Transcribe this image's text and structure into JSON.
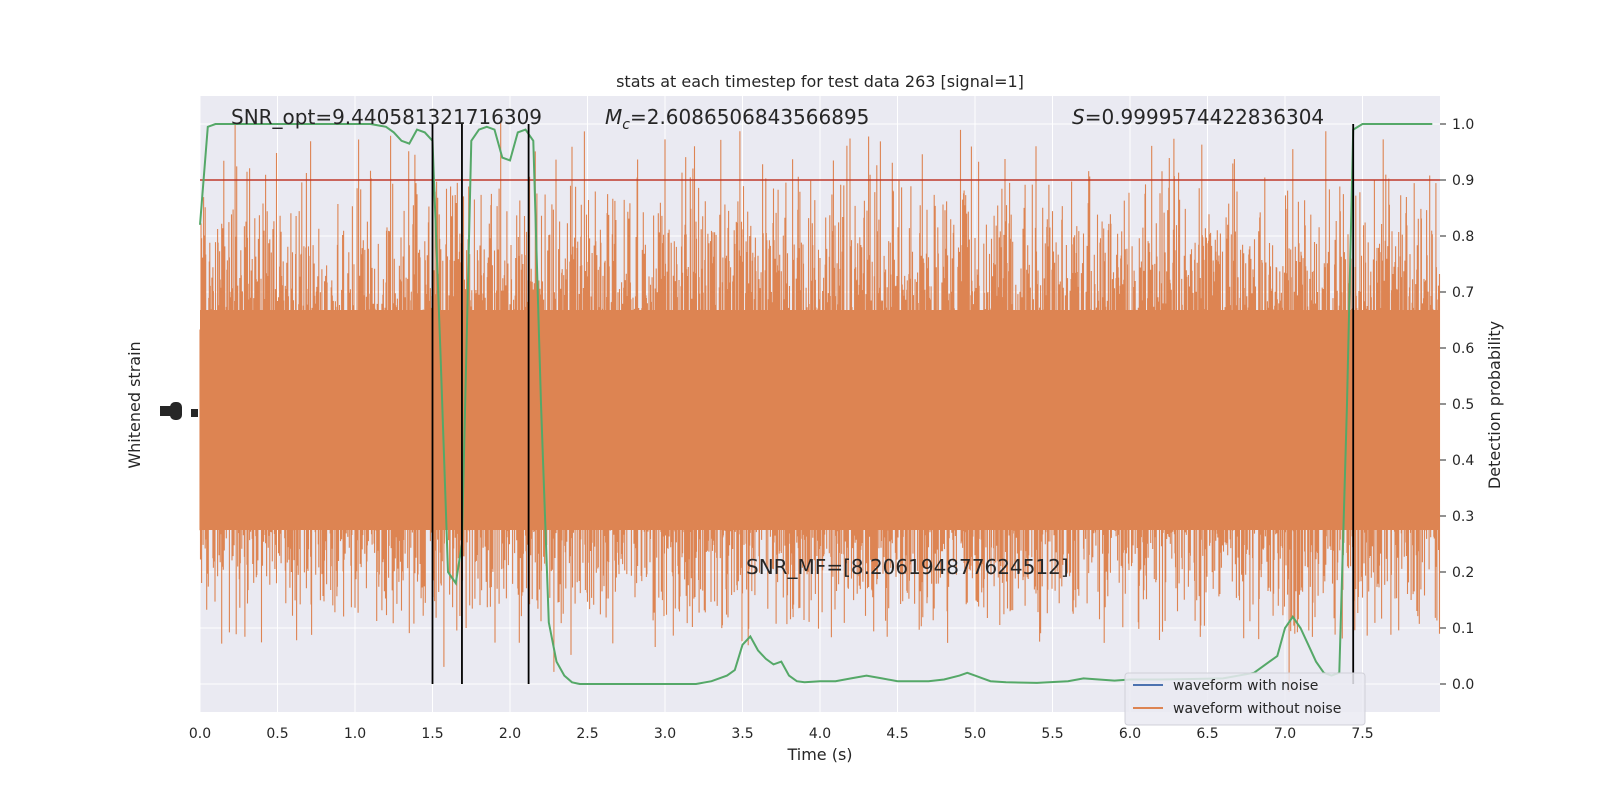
{
  "chart_data": {
    "type": "line",
    "title": "stats at each timestep for test data 263 [signal=1]",
    "xlabel": "Time (s)",
    "ylabel_left": "Whitened strain",
    "ylabel_right": "Detection probability",
    "xlim": [
      0.0,
      8.0
    ],
    "ylim_right": [
      -0.05,
      1.05
    ],
    "x_ticks": [
      "0.0",
      "0.5",
      "1.0",
      "1.5",
      "2.0",
      "2.5",
      "3.0",
      "3.5",
      "4.0",
      "4.5",
      "5.0",
      "5.5",
      "6.0",
      "6.5",
      "7.0",
      "7.5"
    ],
    "y_ticks_right": [
      "0.0",
      "0.1",
      "0.2",
      "0.3",
      "0.4",
      "0.5",
      "0.6",
      "0.7",
      "0.8",
      "0.9",
      "1.0"
    ],
    "grid": true,
    "threshold": 0.9,
    "threshold_color": "#c0392b",
    "vlines": [
      1.5,
      1.69,
      2.12,
      7.44
    ],
    "annotations": {
      "snr_opt": "SNR_opt=9.440581321716309",
      "mc_symbol": "M",
      "mc_sub": "c",
      "mc_value": "=2.6086506843566895",
      "s_symbol": "S",
      "s_value": "=0.9999574422836304",
      "snr_mf": "SNR_MF=[8.206194877624512]"
    },
    "legend": {
      "placement": "bottom-right",
      "entries": [
        {
          "label": "waveform with noise",
          "color": "#4c72b0"
        },
        {
          "label": "waveform without noise",
          "color": "#dd8452"
        }
      ]
    },
    "noise_color": "#dd8452",
    "prob_color": "#55a868",
    "probability_series": {
      "x": [
        0.0,
        0.05,
        0.1,
        0.2,
        0.3,
        0.4,
        0.5,
        0.6,
        0.7,
        0.8,
        0.9,
        1.0,
        1.1,
        1.2,
        1.25,
        1.3,
        1.35,
        1.4,
        1.45,
        1.5,
        1.55,
        1.6,
        1.65,
        1.69,
        1.75,
        1.8,
        1.85,
        1.9,
        1.95,
        2.0,
        2.05,
        2.1,
        2.15,
        2.2,
        2.25,
        2.3,
        2.35,
        2.4,
        2.45,
        2.5,
        2.6,
        2.8,
        3.0,
        3.2,
        3.3,
        3.4,
        3.45,
        3.5,
        3.55,
        3.6,
        3.65,
        3.7,
        3.75,
        3.8,
        3.85,
        3.9,
        3.95,
        4.0,
        4.1,
        4.2,
        4.3,
        4.4,
        4.5,
        4.6,
        4.7,
        4.8,
        4.9,
        4.95,
        5.0,
        5.05,
        5.1,
        5.2,
        5.4,
        5.6,
        5.7,
        5.8,
        5.9,
        6.0,
        6.2,
        6.4,
        6.6,
        6.8,
        6.95,
        7.0,
        7.05,
        7.1,
        7.15,
        7.2,
        7.25,
        7.3,
        7.35,
        7.4,
        7.44,
        7.5,
        7.55,
        7.6,
        7.7,
        7.8,
        7.95
      ],
      "y": [
        0.82,
        0.995,
        1.0,
        1.0,
        1.0,
        1.0,
        1.0,
        1.0,
        1.0,
        1.0,
        1.0,
        1.0,
        1.0,
        0.995,
        0.985,
        0.97,
        0.965,
        0.99,
        0.985,
        0.97,
        0.6,
        0.2,
        0.18,
        0.25,
        0.97,
        0.99,
        0.995,
        0.99,
        0.94,
        0.935,
        0.985,
        0.99,
        0.97,
        0.5,
        0.11,
        0.04,
        0.015,
        0.003,
        0.0,
        0.0,
        0.0,
        0.0,
        0.0,
        0.0,
        0.005,
        0.015,
        0.025,
        0.07,
        0.085,
        0.06,
        0.045,
        0.035,
        0.04,
        0.015,
        0.005,
        0.003,
        0.004,
        0.005,
        0.005,
        0.01,
        0.015,
        0.01,
        0.005,
        0.005,
        0.005,
        0.008,
        0.015,
        0.02,
        0.015,
        0.01,
        0.005,
        0.003,
        0.002,
        0.005,
        0.01,
        0.008,
        0.006,
        0.008,
        0.008,
        0.009,
        0.01,
        0.02,
        0.05,
        0.1,
        0.12,
        0.1,
        0.07,
        0.04,
        0.02,
        0.015,
        0.02,
        0.5,
        0.99,
        1.0,
        1.0,
        1.0,
        1.0,
        1.0,
        1.0
      ]
    }
  }
}
